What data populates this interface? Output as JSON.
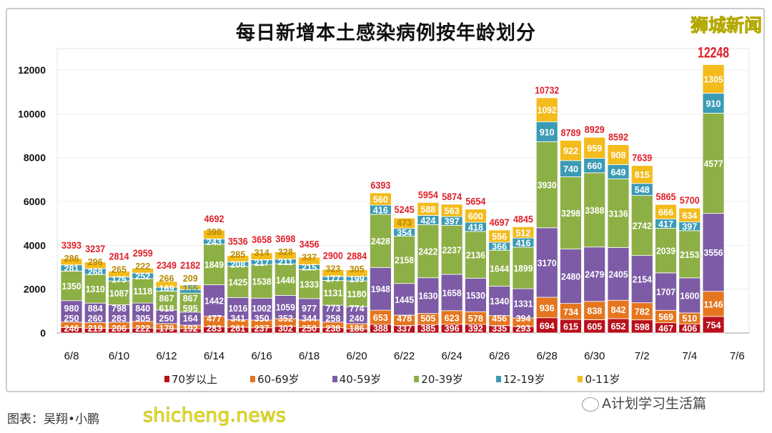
{
  "title": "每日新增本土感染病例按年龄划分",
  "brand_watermark": "狮城新闻",
  "credit": "图表：吴翔•小鹏",
  "site_watermark": "shicheng.news",
  "wechat_watermark": "A计划学习生活篇",
  "chart_data": {
    "type": "bar",
    "stacked": true,
    "title": "每日新增本土感染病例按年龄划分",
    "xlabel": "",
    "ylabel": "",
    "ylim": [
      0,
      12000
    ],
    "yticks": [
      0,
      2000,
      4000,
      6000,
      8000,
      10000,
      12000
    ],
    "grid": true,
    "legend_position": "bottom",
    "categories": [
      "6/8",
      "6/9",
      "6/10",
      "6/11",
      "6/12",
      "6/13",
      "6/14",
      "6/15",
      "6/16",
      "6/17",
      "6/18",
      "6/19",
      "6/20",
      "6/21",
      "6/22",
      "6/23",
      "6/24",
      "6/25",
      "6/26",
      "6/27",
      "6/28",
      "6/29",
      "6/30",
      "7/1",
      "7/2",
      "7/3",
      "7/4",
      "7/5"
    ],
    "xtick_labels": [
      "6/8",
      "6/10",
      "6/12",
      "6/14",
      "6/16",
      "6/18",
      "6/20",
      "6/22",
      "6/24",
      "6/26",
      "6/28",
      "6/30",
      "7/2",
      "7/4",
      "7/6"
    ],
    "series": [
      {
        "name": "70岁以上",
        "color": "#b8101c",
        "values": [
          246,
          219,
          206,
          222,
          179,
          192,
          283,
          261,
          237,
          302,
          250,
          238,
          186,
          388,
          337,
          385,
          396,
          392,
          335,
          293,
          694,
          615,
          605,
          652,
          598,
          467,
          406,
          754
        ]
      },
      {
        "name": "60-69岁",
        "color": "#e5761f",
        "values": [
          250,
          260,
          283,
          305,
          250,
          164,
          477,
          341,
          350,
          352,
          344,
          258,
          240,
          653,
          478,
          505,
          623,
          578,
          456,
          394,
          936,
          734,
          838,
          842,
          782,
          569,
          510,
          1146
        ]
      },
      {
        "name": "40-59岁",
        "color": "#7d5ba6",
        "values": [
          980,
          884,
          798,
          840,
          618,
          595,
          1442,
          1016,
          1002,
          1059,
          977,
          773,
          774,
          1948,
          1445,
          1630,
          1658,
          1530,
          1340,
          1331,
          3170,
          2480,
          2479,
          2405,
          2154,
          1707,
          1600,
          3556
        ]
      },
      {
        "name": "20-39岁",
        "color": "#8db046",
        "values": [
          1350,
          1310,
          1087,
          1118,
          867,
          867,
          1849,
          1425,
          1538,
          1446,
          1333,
          1131,
          1180,
          2428,
          2158,
          2422,
          2237,
          2136,
          1644,
          1899,
          3930,
          3298,
          3388,
          3136,
          2742,
          2039,
          2153,
          4577
        ]
      },
      {
        "name": "12-19岁",
        "color": "#3b9bb5",
        "values": [
          281,
          268,
          175,
          252,
          169,
          155,
          243,
          208,
          217,
          211,
          215,
          177,
          199,
          416,
          354,
          424,
          397,
          418,
          366,
          416,
          910,
          740,
          660,
          649,
          548,
          417,
          397,
          910
        ]
      },
      {
        "name": "0-11岁",
        "color": "#f3bb1c",
        "values": [
          286,
          296,
          265,
          222,
          266,
          209,
          398,
          285,
          314,
          328,
          337,
          323,
          305,
          560,
          473,
          588,
          563,
          600,
          556,
          512,
          1092,
          922,
          959,
          908,
          815,
          666,
          634,
          1305
        ]
      }
    ],
    "totals": [
      3393,
      3237,
      2814,
      2959,
      2349,
      2182,
      4692,
      3536,
      3658,
      3698,
      3456,
      2900,
      2884,
      6393,
      5245,
      5954,
      5874,
      5654,
      4697,
      4845,
      10732,
      8789,
      8929,
      8592,
      7639,
      5865,
      5700,
      12248
    ],
    "total_label_color": "#e0202a"
  }
}
